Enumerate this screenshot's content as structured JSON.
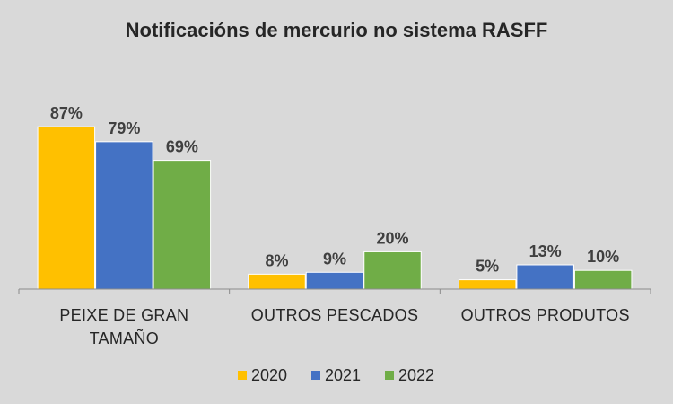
{
  "chart_data": {
    "type": "bar",
    "title": "Notificacións de mercurio no sistema RASFF",
    "categories": [
      [
        "PEIXE DE GRAN",
        "TAMAÑO"
      ],
      [
        "OUTROS PESCADOS"
      ],
      [
        "OUTROS PRODUTOS"
      ]
    ],
    "series": [
      {
        "name": "2020",
        "color": "#ffc000",
        "values": [
          87,
          8,
          5
        ],
        "labels": [
          "87%",
          "8%",
          "5%"
        ]
      },
      {
        "name": "2021",
        "color": "#4472c4",
        "values": [
          79,
          9,
          13
        ],
        "labels": [
          "79%",
          "9%",
          "13%"
        ]
      },
      {
        "name": "2022",
        "color": "#70ad47",
        "values": [
          69,
          20,
          10
        ],
        "labels": [
          "69%",
          "20%",
          "10%"
        ]
      }
    ],
    "ylim": [
      0,
      100
    ],
    "grid": false,
    "legend": "bottom"
  }
}
